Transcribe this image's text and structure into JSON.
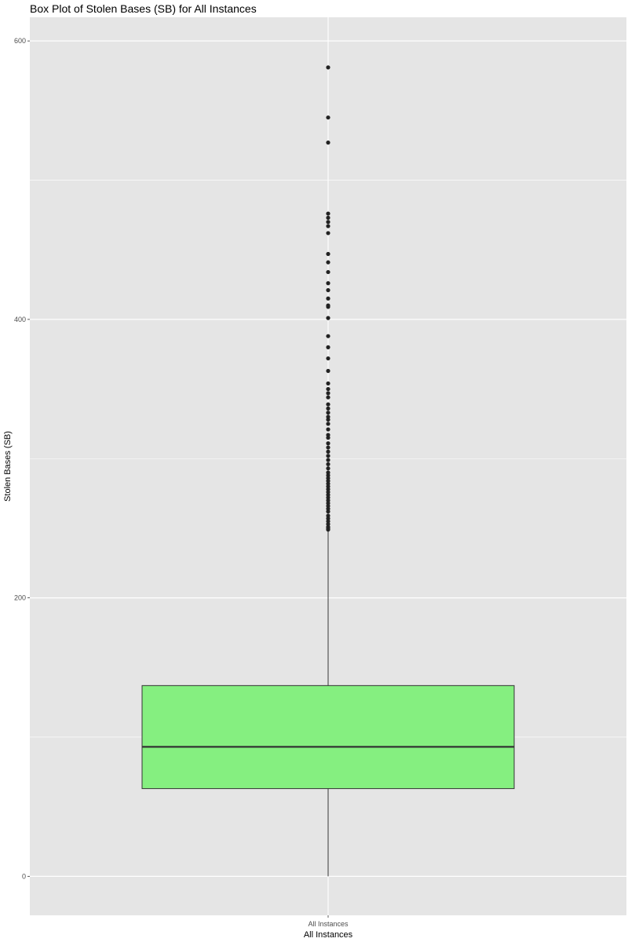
{
  "chart_data": {
    "type": "box",
    "title": "Box Plot of Stolen Bases (SB) for All Instances",
    "xlabel": "All Instances",
    "ylabel": "Stolen Bases (SB)",
    "categories": [
      "All Instances"
    ],
    "ylim": [
      -28,
      617
    ],
    "yticks": [
      0,
      200,
      400,
      600
    ],
    "grid": true,
    "box": {
      "category": "All Instances",
      "whisker_low": 0,
      "q1": 63,
      "median": 93,
      "q3": 137,
      "whisker_high": 248,
      "outliers": [
        581,
        545,
        527,
        476,
        473,
        470,
        467,
        462,
        447,
        441,
        434,
        426,
        421,
        415,
        410,
        409,
        401,
        388,
        380,
        372,
        363,
        354,
        350,
        347,
        344,
        339,
        336,
        333,
        330,
        328,
        325,
        321,
        317,
        315,
        311,
        308,
        305,
        302,
        299,
        296,
        293,
        290,
        288,
        286,
        284,
        282,
        280,
        278,
        276,
        274,
        272,
        270,
        268,
        266,
        264,
        262,
        259,
        257,
        255,
        253,
        251,
        250,
        249
      ]
    },
    "colors": {
      "panel": "#e5e5e5",
      "grid": "#ffffff",
      "box_fill": "#85ef80",
      "box_line": "#333333",
      "points": "#222222"
    }
  }
}
